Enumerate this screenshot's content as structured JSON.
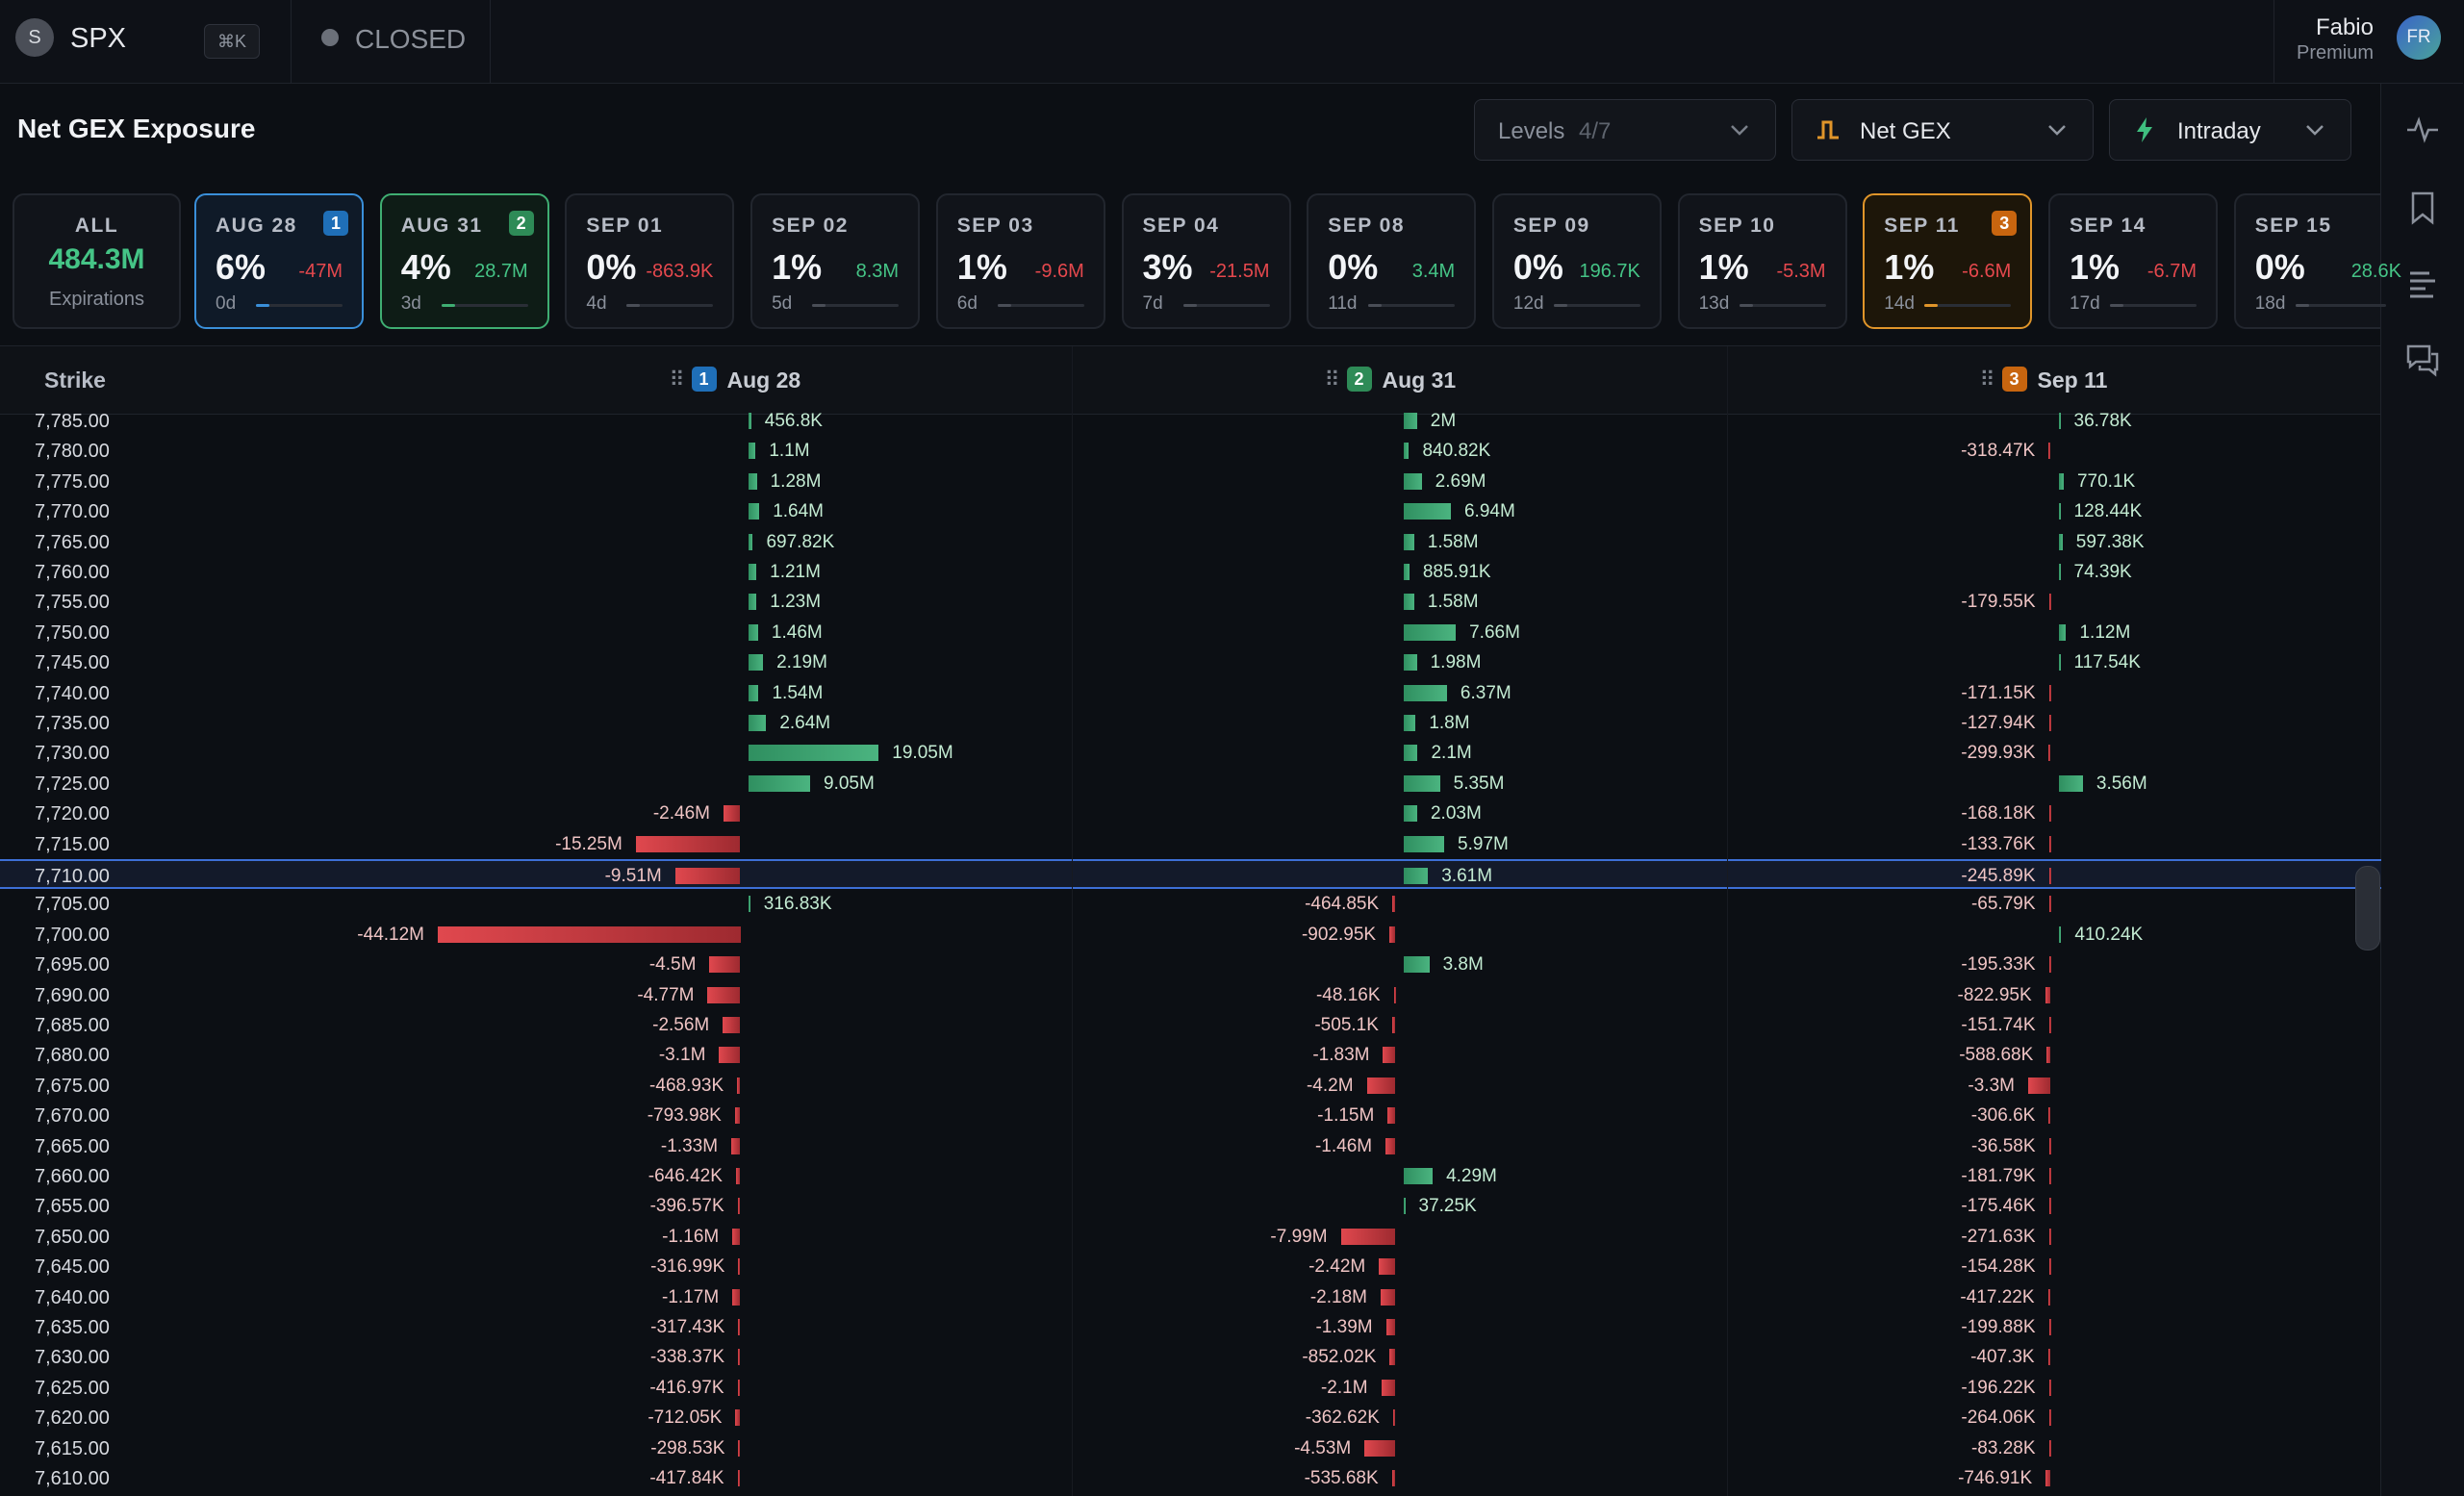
{
  "topbar": {
    "logo": "S",
    "symbol": "SPX",
    "shortcut": "⌘K",
    "status": "CLOSED",
    "user": {
      "name": "Fabio",
      "plan": "Premium",
      "initials": "FR"
    }
  },
  "header": {
    "title": "Net GEX Exposure",
    "controls": [
      {
        "label": "Levels",
        "value": "4/7"
      },
      {
        "label": "Net GEX"
      },
      {
        "label": "Intraday"
      }
    ]
  },
  "summary": {
    "label": "ALL",
    "total": "484.3M",
    "caption": "Expirations"
  },
  "expirations": [
    {
      "date": "AUG 28",
      "pct": "6%",
      "change": "-47M",
      "days": "0d",
      "badge": "1",
      "accent": "#3a8fd9"
    },
    {
      "date": "AUG 31",
      "pct": "4%",
      "change": "28.7M",
      "days": "3d",
      "badge": "2",
      "accent": "#3fae72"
    },
    {
      "date": "SEP 01",
      "pct": "0%",
      "change": "-863.9K",
      "days": "4d"
    },
    {
      "date": "SEP 02",
      "pct": "1%",
      "change": "8.3M",
      "days": "5d"
    },
    {
      "date": "SEP 03",
      "pct": "1%",
      "change": "-9.6M",
      "days": "6d"
    },
    {
      "date": "SEP 04",
      "pct": "3%",
      "change": "-21.5M",
      "days": "7d"
    },
    {
      "date": "SEP 08",
      "pct": "0%",
      "change": "3.4M",
      "days": "11d"
    },
    {
      "date": "SEP 09",
      "pct": "0%",
      "change": "196.7K",
      "days": "12d"
    },
    {
      "date": "SEP 10",
      "pct": "1%",
      "change": "-5.3M",
      "days": "13d"
    },
    {
      "date": "SEP 11",
      "pct": "1%",
      "change": "-6.6M",
      "days": "14d",
      "badge": "3",
      "accent": "#e0952a"
    },
    {
      "date": "SEP 14",
      "pct": "1%",
      "change": "-6.7M",
      "days": "17d"
    },
    {
      "date": "SEP 15",
      "pct": "0%",
      "change": "28.6K",
      "days": "18d"
    }
  ],
  "table": {
    "strike_header": "Strike",
    "columns": [
      {
        "badge": "1",
        "label": "Aug 28",
        "color": "#1f6fb8"
      },
      {
        "badge": "2",
        "label": "Aug 31",
        "color": "#2e8b57"
      },
      {
        "badge": "3",
        "label": "Sep 11",
        "color": "#c8650f"
      }
    ],
    "rows": [
      {
        "strike": "7,785.00",
        "cells": [
          {
            "value": 456800,
            "label": "456.8K"
          },
          {
            "value": 2000000,
            "label": "2M"
          },
          {
            "value": 36780,
            "label": "36.78K"
          }
        ]
      },
      {
        "strike": "7,780.00",
        "cells": [
          {
            "value": 1100000,
            "label": "1.1M"
          },
          {
            "value": 840820,
            "label": "840.82K"
          },
          {
            "value": -318470,
            "label": "-318.47K"
          }
        ]
      },
      {
        "strike": "7,775.00",
        "cells": [
          {
            "value": 1280000,
            "label": "1.28M"
          },
          {
            "value": 2690000,
            "label": "2.69M"
          },
          {
            "value": 770100,
            "label": "770.1K"
          }
        ]
      },
      {
        "strike": "7,770.00",
        "cells": [
          {
            "value": 1640000,
            "label": "1.64M"
          },
          {
            "value": 6940000,
            "label": "6.94M"
          },
          {
            "value": 128440,
            "label": "128.44K"
          }
        ]
      },
      {
        "strike": "7,765.00",
        "cells": [
          {
            "value": 697820,
            "label": "697.82K"
          },
          {
            "value": 1580000,
            "label": "1.58M"
          },
          {
            "value": 597380,
            "label": "597.38K"
          }
        ]
      },
      {
        "strike": "7,760.00",
        "cells": [
          {
            "value": 1210000,
            "label": "1.21M"
          },
          {
            "value": 885910,
            "label": "885.91K"
          },
          {
            "value": 74390,
            "label": "74.39K"
          }
        ]
      },
      {
        "strike": "7,755.00",
        "cells": [
          {
            "value": 1230000,
            "label": "1.23M"
          },
          {
            "value": 1580000,
            "label": "1.58M"
          },
          {
            "value": -179550,
            "label": "-179.55K"
          }
        ]
      },
      {
        "strike": "7,750.00",
        "cells": [
          {
            "value": 1460000,
            "label": "1.46M"
          },
          {
            "value": 7660000,
            "label": "7.66M"
          },
          {
            "value": 1120000,
            "label": "1.12M"
          }
        ]
      },
      {
        "strike": "7,745.00",
        "cells": [
          {
            "value": 2190000,
            "label": "2.19M"
          },
          {
            "value": 1980000,
            "label": "1.98M"
          },
          {
            "value": 117540,
            "label": "117.54K"
          }
        ]
      },
      {
        "strike": "7,740.00",
        "cells": [
          {
            "value": 1540000,
            "label": "1.54M"
          },
          {
            "value": 6370000,
            "label": "6.37M"
          },
          {
            "value": -171150,
            "label": "-171.15K"
          }
        ]
      },
      {
        "strike": "7,735.00",
        "cells": [
          {
            "value": 2640000,
            "label": "2.64M"
          },
          {
            "value": 1800000,
            "label": "1.8M"
          },
          {
            "value": -127940,
            "label": "-127.94K"
          }
        ]
      },
      {
        "strike": "7,730.00",
        "cells": [
          {
            "value": 19050000,
            "label": "19.05M"
          },
          {
            "value": 2100000,
            "label": "2.1M"
          },
          {
            "value": -299930,
            "label": "-299.93K"
          }
        ]
      },
      {
        "strike": "7,725.00",
        "cells": [
          {
            "value": 9050000,
            "label": "9.05M"
          },
          {
            "value": 5350000,
            "label": "5.35M"
          },
          {
            "value": 3560000,
            "label": "3.56M"
          }
        ]
      },
      {
        "strike": "7,720.00",
        "cells": [
          {
            "value": -2460000,
            "label": "-2.46M"
          },
          {
            "value": 2030000,
            "label": "2.03M"
          },
          {
            "value": -168180,
            "label": "-168.18K"
          }
        ]
      },
      {
        "strike": "7,715.00",
        "cells": [
          {
            "value": -15250000,
            "label": "-15.25M"
          },
          {
            "value": 5970000,
            "label": "5.97M"
          },
          {
            "value": -133760,
            "label": "-133.76K"
          }
        ]
      },
      {
        "strike": "7,710.00",
        "highlighted": true,
        "cells": [
          {
            "value": -9510000,
            "label": "-9.51M"
          },
          {
            "value": 3610000,
            "label": "3.61M"
          },
          {
            "value": -245890,
            "label": "-245.89K"
          }
        ]
      },
      {
        "strike": "7,705.00",
        "cells": [
          {
            "value": 316830,
            "label": "316.83K"
          },
          {
            "value": -464850,
            "label": "-464.85K"
          },
          {
            "value": -65790,
            "label": "-65.79K"
          }
        ]
      },
      {
        "strike": "7,700.00",
        "cells": [
          {
            "value": -44120000,
            "label": "-44.12M"
          },
          {
            "value": -902950,
            "label": "-902.95K"
          },
          {
            "value": 410240,
            "label": "410.24K"
          }
        ]
      },
      {
        "strike": "7,695.00",
        "cells": [
          {
            "value": -4500000,
            "label": "-4.5M"
          },
          {
            "value": 3800000,
            "label": "3.8M"
          },
          {
            "value": -195330,
            "label": "-195.33K"
          }
        ]
      },
      {
        "strike": "7,690.00",
        "cells": [
          {
            "value": -4770000,
            "label": "-4.77M"
          },
          {
            "value": -48160,
            "label": "-48.16K"
          },
          {
            "value": -822950,
            "label": "-822.95K"
          }
        ]
      },
      {
        "strike": "7,685.00",
        "cells": [
          {
            "value": -2560000,
            "label": "-2.56M"
          },
          {
            "value": -505100,
            "label": "-505.1K"
          },
          {
            "value": -151740,
            "label": "-151.74K"
          }
        ]
      },
      {
        "strike": "7,680.00",
        "cells": [
          {
            "value": -3100000,
            "label": "-3.1M"
          },
          {
            "value": -1830000,
            "label": "-1.83M"
          },
          {
            "value": -588680,
            "label": "-588.68K"
          }
        ]
      },
      {
        "strike": "7,675.00",
        "cells": [
          {
            "value": -468930,
            "label": "-468.93K"
          },
          {
            "value": -4200000,
            "label": "-4.2M"
          },
          {
            "value": -3300000,
            "label": "-3.3M"
          }
        ]
      },
      {
        "strike": "7,670.00",
        "cells": [
          {
            "value": -793980,
            "label": "-793.98K"
          },
          {
            "value": -1150000,
            "label": "-1.15M"
          },
          {
            "value": -306600,
            "label": "-306.6K"
          }
        ]
      },
      {
        "strike": "7,665.00",
        "cells": [
          {
            "value": -1330000,
            "label": "-1.33M"
          },
          {
            "value": -1460000,
            "label": "-1.46M"
          },
          {
            "value": -36580,
            "label": "-36.58K"
          }
        ]
      },
      {
        "strike": "7,660.00",
        "cells": [
          {
            "value": -646420,
            "label": "-646.42K"
          },
          {
            "value": 4290000,
            "label": "4.29M"
          },
          {
            "value": -181790,
            "label": "-181.79K"
          }
        ]
      },
      {
        "strike": "7,655.00",
        "cells": [
          {
            "value": -396570,
            "label": "-396.57K"
          },
          {
            "value": 37250,
            "label": "37.25K"
          },
          {
            "value": -175460,
            "label": "-175.46K"
          }
        ]
      },
      {
        "strike": "7,650.00",
        "cells": [
          {
            "value": -1160000,
            "label": "-1.16M"
          },
          {
            "value": -7990000,
            "label": "-7.99M"
          },
          {
            "value": -271630,
            "label": "-271.63K"
          }
        ]
      },
      {
        "strike": "7,645.00",
        "cells": [
          {
            "value": -316990,
            "label": "-316.99K"
          },
          {
            "value": -2420000,
            "label": "-2.42M"
          },
          {
            "value": -154280,
            "label": "-154.28K"
          }
        ]
      },
      {
        "strike": "7,640.00",
        "cells": [
          {
            "value": -1170000,
            "label": "-1.17M"
          },
          {
            "value": -2180000,
            "label": "-2.18M"
          },
          {
            "value": -417220,
            "label": "-417.22K"
          }
        ]
      },
      {
        "strike": "7,635.00",
        "cells": [
          {
            "value": -317430,
            "label": "-317.43K"
          },
          {
            "value": -1390000,
            "label": "-1.39M"
          },
          {
            "value": -199880,
            "label": "-199.88K"
          }
        ]
      },
      {
        "strike": "7,630.00",
        "cells": [
          {
            "value": -338370,
            "label": "-338.37K"
          },
          {
            "value": -852020,
            "label": "-852.02K"
          },
          {
            "value": -407300,
            "label": "-407.3K"
          }
        ]
      },
      {
        "strike": "7,625.00",
        "cells": [
          {
            "value": -416970,
            "label": "-416.97K"
          },
          {
            "value": -2100000,
            "label": "-2.1M"
          },
          {
            "value": -196220,
            "label": "-196.22K"
          }
        ]
      },
      {
        "strike": "7,620.00",
        "cells": [
          {
            "value": -712050,
            "label": "-712.05K"
          },
          {
            "value": -362620,
            "label": "-362.62K"
          },
          {
            "value": -264060,
            "label": "-264.06K"
          }
        ]
      },
      {
        "strike": "7,615.00",
        "cells": [
          {
            "value": -298530,
            "label": "-298.53K"
          },
          {
            "value": -4530000,
            "label": "-4.53M"
          },
          {
            "value": -83280,
            "label": "-83.28K"
          }
        ]
      },
      {
        "strike": "7,610.00",
        "cells": [
          {
            "value": -417840,
            "label": "-417.84K"
          },
          {
            "value": -535680,
            "label": "-535.68K"
          },
          {
            "value": -746910,
            "label": "-746.91K"
          }
        ]
      }
    ]
  }
}
